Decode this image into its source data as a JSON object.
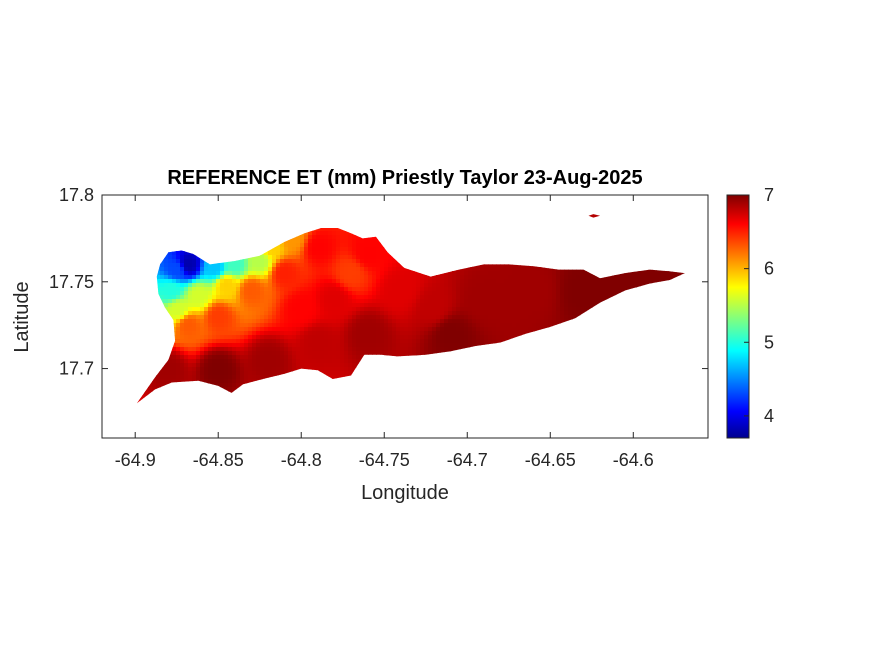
{
  "chart_data": {
    "type": "heatmap",
    "title": "REFERENCE ET (mm) Priestly Taylor 23-Aug-2025",
    "xlabel": "Longitude",
    "ylabel": "Latitude",
    "xlim": [
      -64.92,
      -64.555
    ],
    "ylim": [
      17.66,
      17.8
    ],
    "xticks": [
      -64.9,
      -64.85,
      -64.8,
      -64.75,
      -64.7,
      -64.65,
      -64.6
    ],
    "xtick_labels": [
      "-64.9",
      "-64.85",
      "-64.8",
      "-64.75",
      "-64.7",
      "-64.65",
      "-64.6"
    ],
    "yticks": [
      17.7,
      17.75,
      17.8
    ],
    "ytick_labels": [
      "17.7",
      "17.75",
      "17.8"
    ],
    "colorbar": {
      "colormap": "jet",
      "clim": [
        3.7,
        7.0
      ],
      "ticks": [
        4,
        5,
        6,
        7
      ],
      "tick_labels": [
        "4",
        "5",
        "6",
        "7"
      ]
    },
    "grid": false,
    "island_outline": [
      [
        -64.899,
        17.68
      ],
      [
        -64.888,
        17.688
      ],
      [
        -64.878,
        17.692
      ],
      [
        -64.862,
        17.693
      ],
      [
        -64.85,
        17.69
      ],
      [
        -64.842,
        17.686
      ],
      [
        -64.835,
        17.691
      ],
      [
        -64.823,
        17.694
      ],
      [
        -64.81,
        17.697
      ],
      [
        -64.8,
        17.7
      ],
      [
        -64.79,
        17.699
      ],
      [
        -64.781,
        17.694
      ],
      [
        -64.77,
        17.696
      ],
      [
        -64.762,
        17.708
      ],
      [
        -64.752,
        17.708
      ],
      [
        -64.742,
        17.707
      ],
      [
        -64.725,
        17.708
      ],
      [
        -64.71,
        17.71
      ],
      [
        -64.695,
        17.713
      ],
      [
        -64.68,
        17.715
      ],
      [
        -64.665,
        17.72
      ],
      [
        -64.65,
        17.724
      ],
      [
        -64.635,
        17.729
      ],
      [
        -64.62,
        17.738
      ],
      [
        -64.605,
        17.745
      ],
      [
        -64.59,
        17.749
      ],
      [
        -64.578,
        17.751
      ],
      [
        -64.569,
        17.755
      ],
      [
        -64.578,
        17.756
      ],
      [
        -64.59,
        17.757
      ],
      [
        -64.605,
        17.755
      ],
      [
        -64.62,
        17.752
      ],
      [
        -64.63,
        17.757
      ],
      [
        -64.645,
        17.757
      ],
      [
        -64.66,
        17.759
      ],
      [
        -64.675,
        17.76
      ],
      [
        -64.69,
        17.76
      ],
      [
        -64.705,
        17.757
      ],
      [
        -64.722,
        17.753
      ],
      [
        -64.738,
        17.758
      ],
      [
        -64.748,
        17.767
      ],
      [
        -64.755,
        17.776
      ],
      [
        -64.763,
        17.775
      ],
      [
        -64.77,
        17.778
      ],
      [
        -64.778,
        17.781
      ],
      [
        -64.788,
        17.781
      ],
      [
        -64.798,
        17.778
      ],
      [
        -64.81,
        17.773
      ],
      [
        -64.825,
        17.765
      ],
      [
        -64.84,
        17.762
      ],
      [
        -64.855,
        17.76
      ],
      [
        -64.865,
        17.766
      ],
      [
        -64.872,
        17.768
      ],
      [
        -64.88,
        17.767
      ],
      [
        -64.885,
        17.76
      ],
      [
        -64.887,
        17.753
      ],
      [
        -64.886,
        17.743
      ],
      [
        -64.882,
        17.735
      ],
      [
        -64.877,
        17.728
      ],
      [
        -64.876,
        17.716
      ],
      [
        -64.88,
        17.705
      ],
      [
        -64.888,
        17.695
      ],
      [
        -64.899,
        17.68
      ]
    ],
    "islet_outline": [
      [
        -64.627,
        17.788
      ],
      [
        -64.624,
        17.789
      ],
      [
        -64.62,
        17.788
      ],
      [
        -64.624,
        17.787
      ]
    ],
    "et_samples": [
      {
        "lon": -64.868,
        "lat": 17.76,
        "value": 3.8
      },
      {
        "lon": -64.875,
        "lat": 17.757,
        "value": 4.3
      },
      {
        "lon": -64.852,
        "lat": 17.758,
        "value": 4.7
      },
      {
        "lon": -64.84,
        "lat": 17.76,
        "value": 5.1
      },
      {
        "lon": -64.878,
        "lat": 17.745,
        "value": 5.0
      },
      {
        "lon": -64.874,
        "lat": 17.734,
        "value": 5.6
      },
      {
        "lon": -64.862,
        "lat": 17.742,
        "value": 5.6
      },
      {
        "lon": -64.845,
        "lat": 17.748,
        "value": 5.9
      },
      {
        "lon": -64.825,
        "lat": 17.762,
        "value": 5.5
      },
      {
        "lon": -64.818,
        "lat": 17.77,
        "value": 5.9
      },
      {
        "lon": -64.805,
        "lat": 17.775,
        "value": 6.1
      },
      {
        "lon": -64.868,
        "lat": 17.725,
        "value": 6.3
      },
      {
        "lon": -64.85,
        "lat": 17.73,
        "value": 6.4
      },
      {
        "lon": -64.83,
        "lat": 17.745,
        "value": 6.3
      },
      {
        "lon": -64.81,
        "lat": 17.755,
        "value": 6.5
      },
      {
        "lon": -64.79,
        "lat": 17.77,
        "value": 6.6
      },
      {
        "lon": -64.76,
        "lat": 17.766,
        "value": 6.6
      },
      {
        "lon": -64.74,
        "lat": 17.745,
        "value": 6.7
      },
      {
        "lon": -64.72,
        "lat": 17.735,
        "value": 6.8
      },
      {
        "lon": -64.69,
        "lat": 17.74,
        "value": 6.9
      },
      {
        "lon": -64.66,
        "lat": 17.745,
        "value": 6.9
      },
      {
        "lon": -64.63,
        "lat": 17.745,
        "value": 7.0
      },
      {
        "lon": -64.6,
        "lat": 17.752,
        "value": 7.0
      },
      {
        "lon": -64.88,
        "lat": 17.7,
        "value": 6.9
      },
      {
        "lon": -64.85,
        "lat": 17.7,
        "value": 7.0
      },
      {
        "lon": -64.82,
        "lat": 17.705,
        "value": 6.9
      },
      {
        "lon": -64.79,
        "lat": 17.715,
        "value": 6.8
      },
      {
        "lon": -64.76,
        "lat": 17.72,
        "value": 6.9
      },
      {
        "lon": -64.78,
        "lat": 17.74,
        "value": 6.7
      },
      {
        "lon": -64.71,
        "lat": 17.72,
        "value": 7.0
      },
      {
        "lon": -64.77,
        "lat": 17.755,
        "value": 6.4
      },
      {
        "lon": -64.8,
        "lat": 17.735,
        "value": 6.6
      }
    ]
  }
}
